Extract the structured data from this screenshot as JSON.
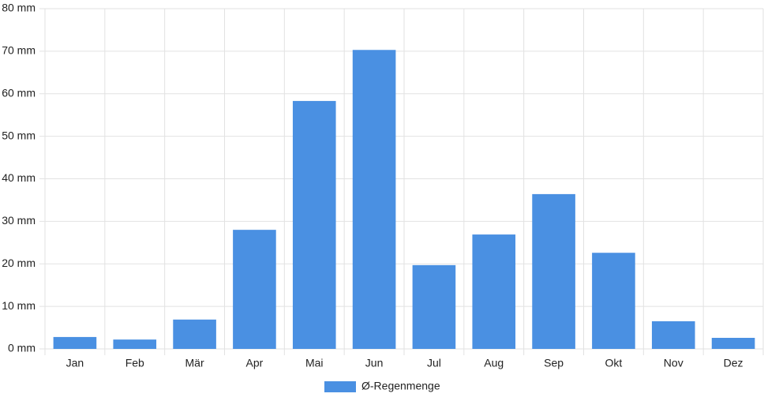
{
  "chart_data": {
    "type": "bar",
    "categories": [
      "Jan",
      "Feb",
      "Mär",
      "Apr",
      "Mai",
      "Jun",
      "Jul",
      "Aug",
      "Sep",
      "Okt",
      "Nov",
      "Dez"
    ],
    "series": [
      {
        "name": "Ø-Regenmenge",
        "color": "#4a90e2",
        "values": [
          2.8,
          2.2,
          6.9,
          28.0,
          58.3,
          70.3,
          19.7,
          26.9,
          36.4,
          22.6,
          6.5,
          2.6
        ]
      }
    ],
    "ylim": [
      0,
      80
    ],
    "yticks": [
      {
        "value": 0,
        "label": "0 mm"
      },
      {
        "value": 10,
        "label": "10 mm"
      },
      {
        "value": 20,
        "label": "20 mm"
      },
      {
        "value": 30,
        "label": "30 mm"
      },
      {
        "value": 40,
        "label": "40 mm"
      },
      {
        "value": 50,
        "label": "50 mm"
      },
      {
        "value": 60,
        "label": "60 mm"
      },
      {
        "value": 70,
        "label": "70 mm"
      },
      {
        "value": 80,
        "label": "80 mm"
      }
    ],
    "grid": true,
    "legend": "bottom"
  }
}
